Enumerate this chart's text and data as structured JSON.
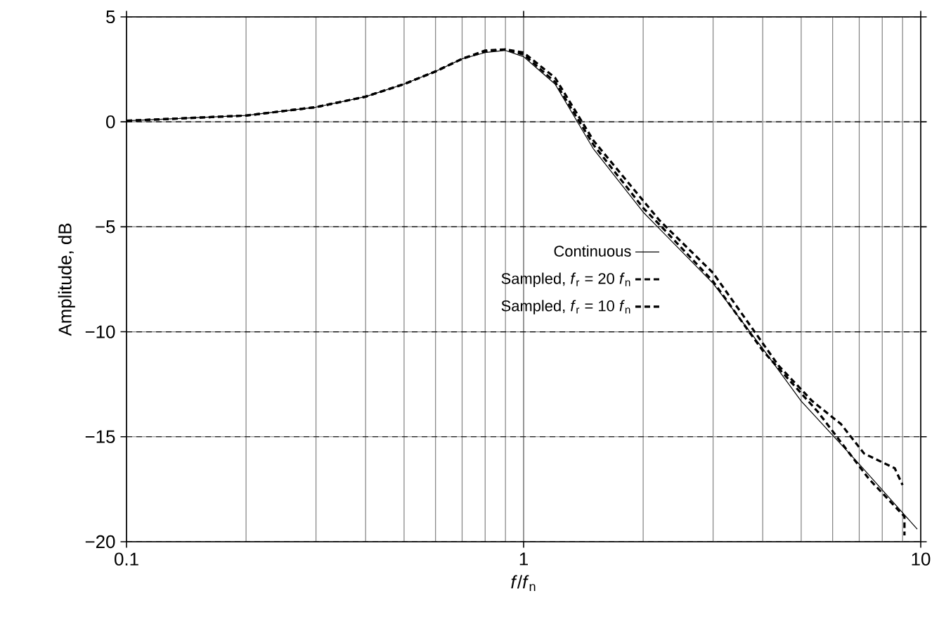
{
  "chart_data": {
    "type": "line",
    "xlabel": "*f*/*f*$_{n}$",
    "ylabel": "Amplitude, dB",
    "log": "x",
    "xlim": [
      0.1,
      10
    ],
    "ylim": [
      -20,
      5
    ],
    "xticks": [
      0.1,
      1,
      10
    ],
    "yticks": [
      {
        "value": -20,
        "label": "−20"
      },
      {
        "value": -15,
        "label": "−15"
      },
      {
        "value": -10,
        "label": "−10"
      },
      {
        "value": -5,
        "label": "−5"
      },
      0,
      5
    ],
    "grid": true,
    "legend": "center",
    "series": [
      {
        "name": "Continuous",
        "color": "#000000",
        "line_style": "solid",
        "x": [
          0.1,
          0.2,
          0.3,
          0.4,
          0.5,
          0.6,
          0.7,
          0.8,
          0.9,
          1.0,
          1.2,
          1.5,
          2.0,
          2.2,
          3.0,
          4.0,
          5.0,
          7.0,
          9.8
        ],
        "values": [
          0.05,
          0.3,
          0.7,
          1.2,
          1.8,
          2.4,
          3.0,
          3.3,
          3.4,
          3.1,
          1.8,
          -1.3,
          -4.3,
          -5.1,
          -7.7,
          -10.8,
          -13.3,
          -16.3,
          -19.4
        ]
      },
      {
        "name": "Sampled, *f*$_{r}$ = 20 *f*$_{n}$",
        "color": "#000000",
        "line_style": "dashed",
        "x": [
          0.1,
          0.2,
          0.3,
          0.4,
          0.5,
          0.6,
          0.7,
          0.8,
          0.9,
          1.0,
          1.2,
          1.5,
          2.0,
          2.2,
          3.0,
          4.0,
          5.5,
          7.4,
          9.1,
          9.1
        ],
        "values": [
          0.05,
          0.3,
          0.7,
          1.2,
          1.8,
          2.4,
          3.0,
          3.35,
          3.45,
          3.2,
          1.9,
          -1.1,
          -4.1,
          -4.9,
          -7.6,
          -10.9,
          -13.8,
          -17.0,
          -18.8,
          -19.7
        ]
      },
      {
        "name": "Sampled, *f*$_{r}$ = 10 *f*$_{n}$",
        "color": "#000000",
        "line_style": "dashed",
        "x": [
          0.1,
          0.2,
          0.3,
          0.4,
          0.5,
          0.6,
          0.7,
          0.8,
          0.9,
          1.0,
          1.2,
          1.5,
          2.2,
          3.0,
          4.38,
          5.33,
          6.3,
          7.2,
          8.6,
          8.9,
          9.0
        ],
        "values": [
          0.05,
          0.3,
          0.7,
          1.2,
          1.8,
          2.4,
          3.0,
          3.4,
          3.45,
          3.3,
          2.1,
          -0.9,
          -4.7,
          -7.2,
          -11.6,
          -13.3,
          -14.4,
          -15.8,
          -16.5,
          -17.1,
          -17.3
        ]
      }
    ]
  }
}
